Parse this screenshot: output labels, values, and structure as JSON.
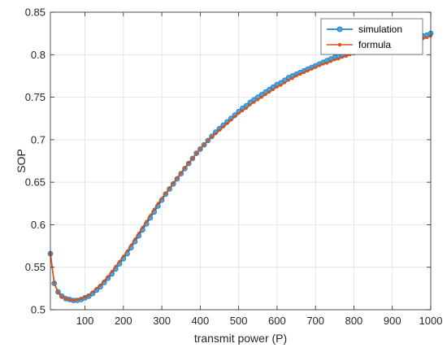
{
  "chart_data": {
    "type": "line",
    "title": "",
    "xlabel": "transmit power (P)",
    "ylabel": "SOP",
    "xlim": [
      10,
      1000
    ],
    "ylim": [
      0.5,
      0.85
    ],
    "xticks": [
      "100",
      "200",
      "300",
      "400",
      "500",
      "600",
      "700",
      "800",
      "900",
      "1000"
    ],
    "yticks": [
      "0.5",
      "0.55",
      "0.6",
      "0.65",
      "0.7",
      "0.75",
      "0.8",
      "0.85"
    ],
    "grid": true,
    "legend_position": "top-right",
    "x": [
      10,
      20,
      30,
      40,
      50,
      60,
      70,
      80,
      90,
      100,
      110,
      120,
      130,
      140,
      150,
      160,
      170,
      180,
      190,
      200,
      210,
      220,
      230,
      240,
      250,
      260,
      270,
      280,
      290,
      300,
      310,
      320,
      330,
      340,
      350,
      360,
      370,
      380,
      390,
      400,
      410,
      420,
      430,
      440,
      450,
      460,
      470,
      480,
      490,
      500,
      510,
      520,
      530,
      540,
      550,
      560,
      570,
      580,
      590,
      600,
      610,
      620,
      630,
      640,
      650,
      660,
      670,
      680,
      690,
      700,
      710,
      720,
      730,
      740,
      750,
      760,
      770,
      780,
      790,
      800,
      810,
      820,
      830,
      840,
      850,
      860,
      870,
      880,
      890,
      900,
      910,
      920,
      930,
      940,
      950,
      960,
      970,
      980,
      990,
      1000
    ],
    "series": [
      {
        "name": "simulation",
        "color": "#0072BD",
        "marker_color": "#4DA3E0",
        "values": [
          0.566,
          0.531,
          0.521,
          0.516,
          0.513,
          0.512,
          0.511,
          0.511,
          0.512,
          0.514,
          0.516,
          0.519,
          0.523,
          0.527,
          0.532,
          0.537,
          0.542,
          0.548,
          0.554,
          0.56,
          0.566,
          0.573,
          0.58,
          0.587,
          0.594,
          0.601,
          0.608,
          0.615,
          0.622,
          0.629,
          0.636,
          0.642,
          0.648,
          0.654,
          0.66,
          0.666,
          0.672,
          0.678,
          0.684,
          0.689,
          0.694,
          0.699,
          0.704,
          0.709,
          0.713,
          0.717,
          0.721,
          0.725,
          0.729,
          0.733,
          0.737,
          0.74,
          0.744,
          0.747,
          0.75,
          0.753,
          0.756,
          0.759,
          0.762,
          0.765,
          0.767,
          0.77,
          0.773,
          0.775,
          0.777,
          0.779,
          0.781,
          0.783,
          0.785,
          0.787,
          0.789,
          0.791,
          0.793,
          0.795,
          0.797,
          0.799,
          0.8,
          0.802,
          0.803,
          0.804,
          0.805,
          0.806,
          0.807,
          0.808,
          0.809,
          0.81,
          0.811,
          0.812,
          0.813,
          0.814,
          0.815,
          0.816,
          0.817,
          0.818,
          0.819,
          0.82,
          0.821,
          0.822,
          0.823,
          0.825
        ]
      },
      {
        "name": "formula",
        "color": "#D95319",
        "marker_color": "#D95319",
        "values": [
          0.566,
          0.532,
          0.52,
          0.515,
          0.513,
          0.512,
          0.511,
          0.512,
          0.513,
          0.515,
          0.517,
          0.521,
          0.525,
          0.529,
          0.534,
          0.539,
          0.545,
          0.551,
          0.557,
          0.563,
          0.569,
          0.576,
          0.583,
          0.59,
          0.597,
          0.604,
          0.611,
          0.618,
          0.625,
          0.631,
          0.637,
          0.643,
          0.649,
          0.655,
          0.661,
          0.667,
          0.673,
          0.678,
          0.684,
          0.689,
          0.694,
          0.699,
          0.703,
          0.707,
          0.711,
          0.715,
          0.719,
          0.723,
          0.727,
          0.731,
          0.734,
          0.737,
          0.741,
          0.744,
          0.747,
          0.75,
          0.753,
          0.756,
          0.759,
          0.762,
          0.764,
          0.767,
          0.77,
          0.772,
          0.775,
          0.777,
          0.779,
          0.781,
          0.783,
          0.785,
          0.787,
          0.789,
          0.79,
          0.792,
          0.794,
          0.795,
          0.797,
          0.798,
          0.8,
          0.801,
          0.802,
          0.803,
          0.804,
          0.805,
          0.806,
          0.807,
          0.808,
          0.809,
          0.81,
          0.811,
          0.812,
          0.813,
          0.814,
          0.815,
          0.816,
          0.817,
          0.818,
          0.819,
          0.82,
          0.822
        ]
      }
    ]
  }
}
